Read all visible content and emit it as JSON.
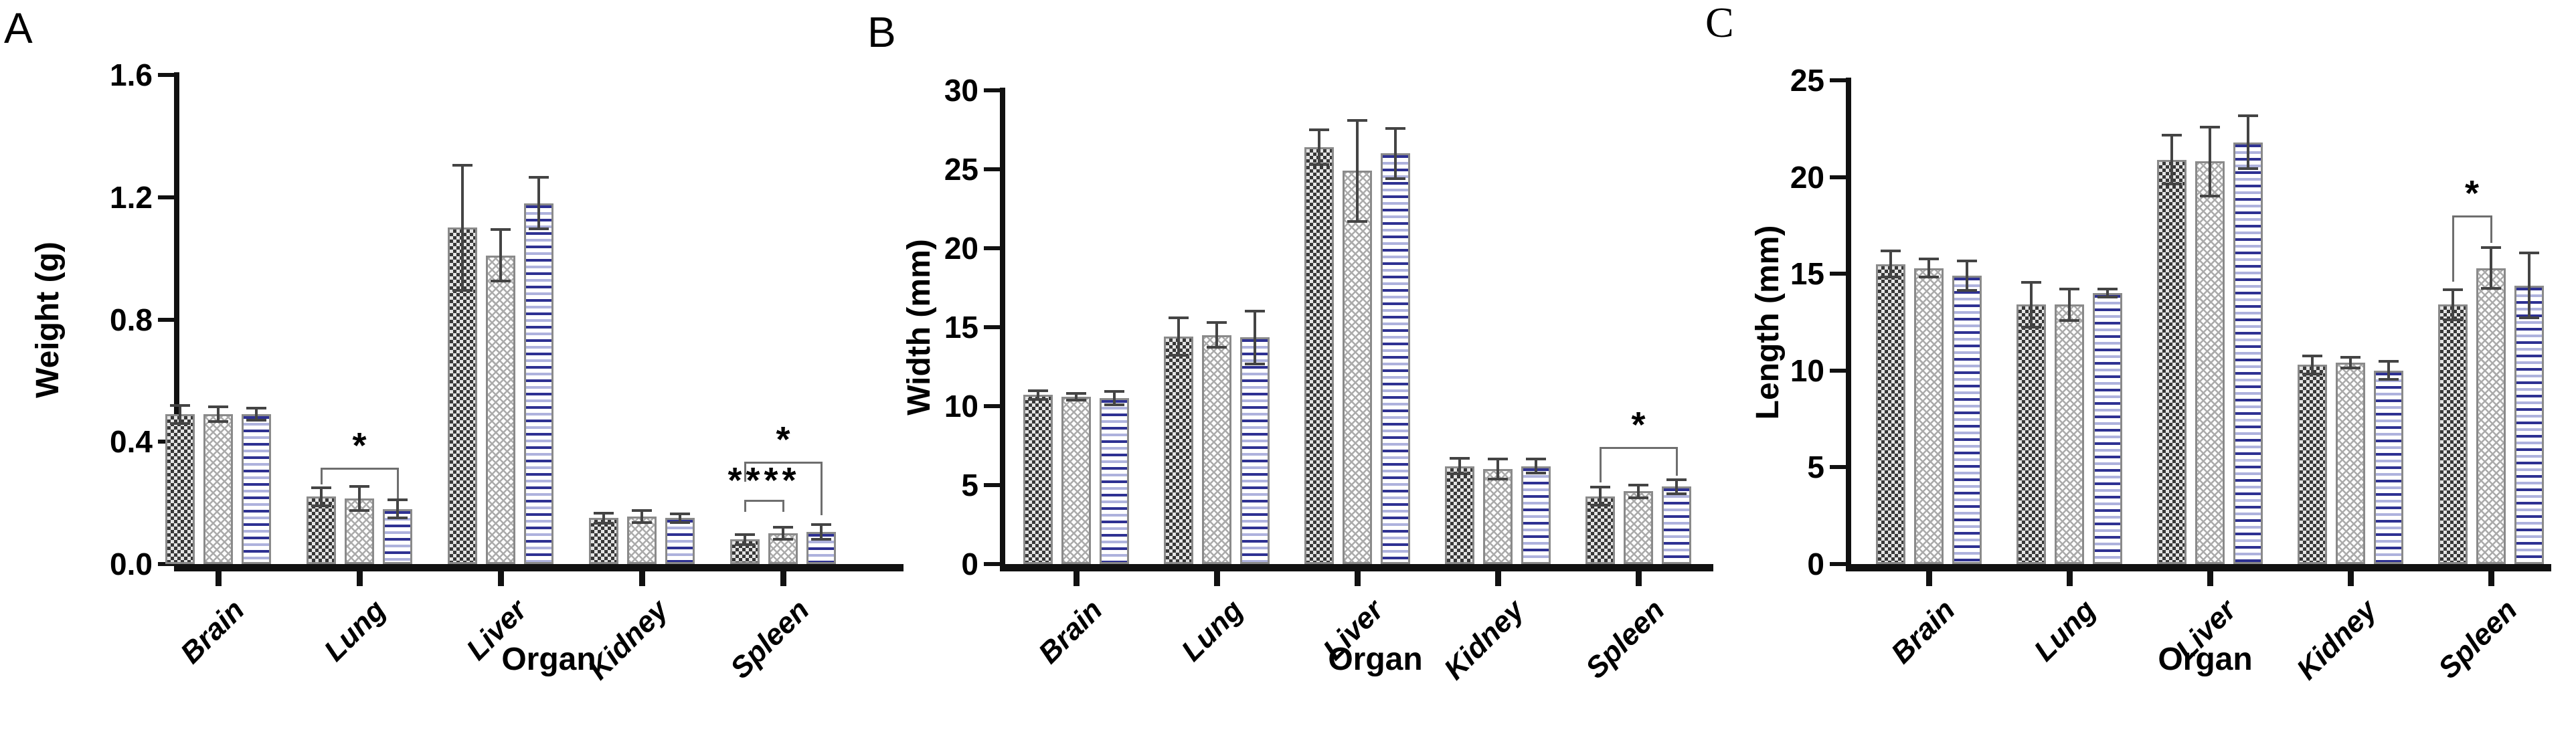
{
  "figure": {
    "background": "#ffffff",
    "panel_letters": [
      "A",
      "B",
      "C"
    ]
  },
  "colors": {
    "axis": "#111111",
    "bar_border": "#8a8a8a",
    "checker_dark": "#383838",
    "hatch_gray": "#aaaaaa",
    "stripe_navy": "#2e3192",
    "stripe_lavender": "#aeb2dd",
    "error_bar": "#444444",
    "bracket_gray": "#6e6e6e"
  },
  "chart_data": [
    {
      "panel": "A",
      "type": "bar",
      "title": "",
      "xlabel": "Organ",
      "ylabel": "Weight (g)",
      "ylim": [
        0,
        1.6
      ],
      "yticks": [
        0,
        0.4,
        0.8,
        1.2,
        1.6
      ],
      "ytick_labels": [
        "0.0",
        "0.4",
        "0.8",
        "1.2",
        "1.6"
      ],
      "categories": [
        "Brain",
        "Lung",
        "Liver",
        "Kidney",
        "Spleen"
      ],
      "grid": false,
      "legend": "none",
      "series": [
        {
          "name": "dark-checkerboard",
          "values": [
            0.49,
            0.22,
            1.1,
            0.15,
            0.08
          ],
          "errors": [
            0.025,
            0.025,
            0.2,
            0.012,
            0.012
          ]
        },
        {
          "name": "light-diagonal-hatch",
          "values": [
            0.49,
            0.215,
            1.01,
            0.155,
            0.1
          ],
          "errors": [
            0.02,
            0.035,
            0.08,
            0.015,
            0.015
          ]
        },
        {
          "name": "blue-horizontal-stripes",
          "values": [
            0.49,
            0.18,
            1.18,
            0.15,
            0.105
          ],
          "errors": [
            0.015,
            0.025,
            0.08,
            0.01,
            0.02
          ]
        }
      ],
      "annotations": [
        {
          "label": "*",
          "category": "Lung",
          "from_series": 0,
          "to_series": 2,
          "line_value": 0.315,
          "left_leg_end": 0.26,
          "right_leg_end": 0.215
        },
        {
          "label": "****",
          "category": "Spleen",
          "from_series": 0,
          "to_series": 1,
          "line_value": 0.21,
          "left_leg_end": 0.17,
          "right_leg_end": 0.17
        },
        {
          "label": "*",
          "category": "Spleen",
          "from_series": 0,
          "to_series": 2,
          "line_value": 0.335,
          "left_leg_end": 0.27,
          "right_leg_end": 0.16
        }
      ]
    },
    {
      "panel": "B",
      "type": "bar",
      "title": "",
      "xlabel": "Organ",
      "ylabel": "Width (mm)",
      "ylim": [
        0,
        30
      ],
      "yticks": [
        0,
        5,
        10,
        15,
        20,
        25,
        30
      ],
      "ytick_labels": [
        "0",
        "5",
        "10",
        "15",
        "20",
        "25",
        "30"
      ],
      "categories": [
        "Brain",
        "Lung",
        "Liver",
        "Kidney",
        "Spleen"
      ],
      "grid": false,
      "legend": "none",
      "series": [
        {
          "name": "dark-checkerboard",
          "values": [
            10.7,
            14.4,
            26.4,
            6.2,
            4.3
          ],
          "errors": [
            0.2,
            1.1,
            1.0,
            0.4,
            0.5
          ]
        },
        {
          "name": "light-diagonal-hatch",
          "values": [
            10.6,
            14.5,
            24.9,
            6.0,
            4.6
          ],
          "errors": [
            0.12,
            0.7,
            3.1,
            0.55,
            0.3
          ]
        },
        {
          "name": "blue-horizontal-stripes",
          "values": [
            10.5,
            14.35,
            26.0,
            6.2,
            4.9
          ],
          "errors": [
            0.35,
            1.6,
            1.5,
            0.35,
            0.35
          ]
        }
      ],
      "annotations": [
        {
          "label": "*",
          "category": "Spleen",
          "from_series": 0,
          "to_series": 2,
          "line_value": 7.4,
          "left_leg_end": 5.15,
          "right_leg_end": 5.6
        }
      ]
    },
    {
      "panel": "C",
      "type": "bar",
      "title": "",
      "xlabel": "Organ",
      "ylabel": "Length (mm)",
      "ylim": [
        0,
        25
      ],
      "yticks": [
        0,
        5,
        10,
        15,
        20,
        25
      ],
      "ytick_labels": [
        "0",
        "5",
        "10",
        "15",
        "20",
        "25"
      ],
      "categories": [
        "Brain",
        "Lung",
        "Liver",
        "Kidney",
        "Spleen"
      ],
      "grid": false,
      "legend": "none",
      "series": [
        {
          "name": "dark-checkerboard",
          "values": [
            15.5,
            13.4,
            20.9,
            10.3,
            13.4
          ],
          "errors": [
            0.6,
            1.1,
            1.2,
            0.4,
            0.7
          ]
        },
        {
          "name": "light-diagonal-hatch",
          "values": [
            15.3,
            13.4,
            20.8,
            10.4,
            15.3
          ],
          "errors": [
            0.4,
            0.75,
            1.7,
            0.2,
            1.0
          ]
        },
        {
          "name": "blue-horizontal-stripes",
          "values": [
            14.9,
            14.0,
            21.8,
            10.0,
            14.4
          ],
          "errors": [
            0.7,
            0.15,
            1.3,
            0.4,
            1.6
          ]
        }
      ],
      "annotations": [
        {
          "label": "*",
          "category": "Spleen",
          "from_series": 0,
          "to_series": 1,
          "line_value": 18.0,
          "left_leg_end": 14.6,
          "right_leg_end": 16.6
        }
      ]
    }
  ]
}
